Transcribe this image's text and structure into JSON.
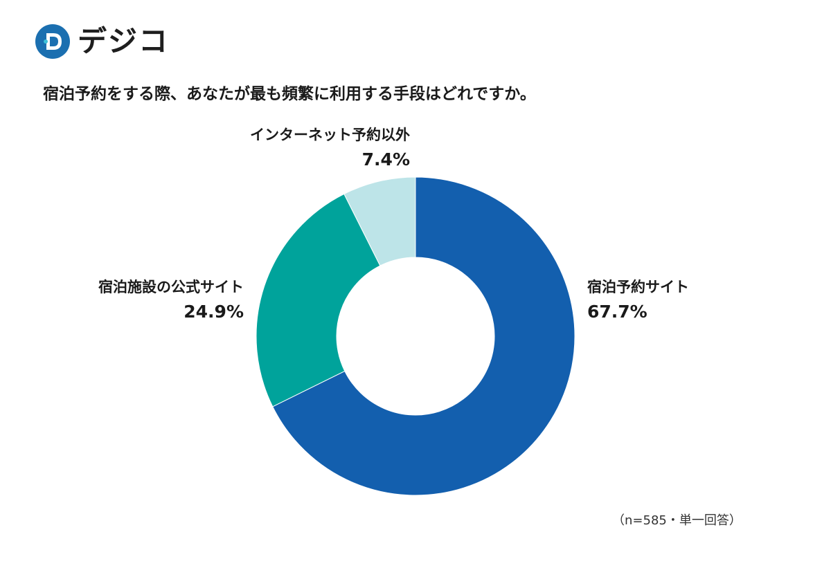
{
  "brand": {
    "logo_text": "デジコ",
    "logo_color": "#1b6fb0",
    "logo_accent": "#3cc0d8"
  },
  "question": "宿泊予約をする際、あなたが最も頻繁に利用する手段はどれですか。",
  "note": "（n=585・単一回答）",
  "chart_data": {
    "type": "pie",
    "donut": true,
    "title": "宿泊予約をする際、あなたが最も頻繁に利用する手段はどれですか。",
    "slices": [
      {
        "label": "宿泊予約サイト",
        "value": 67.7,
        "display": "67.7%",
        "color": "#135fae"
      },
      {
        "label": "宿泊施設の公式サイト",
        "value": 24.9,
        "display": "24.9%",
        "color": "#00a39b"
      },
      {
        "label": "インターネット予約以外",
        "value": 7.4,
        "display": "7.4%",
        "color": "#bde4e8"
      }
    ],
    "start": "12 o'clock",
    "direction": "clockwise",
    "legend": "none (direct labels)"
  }
}
